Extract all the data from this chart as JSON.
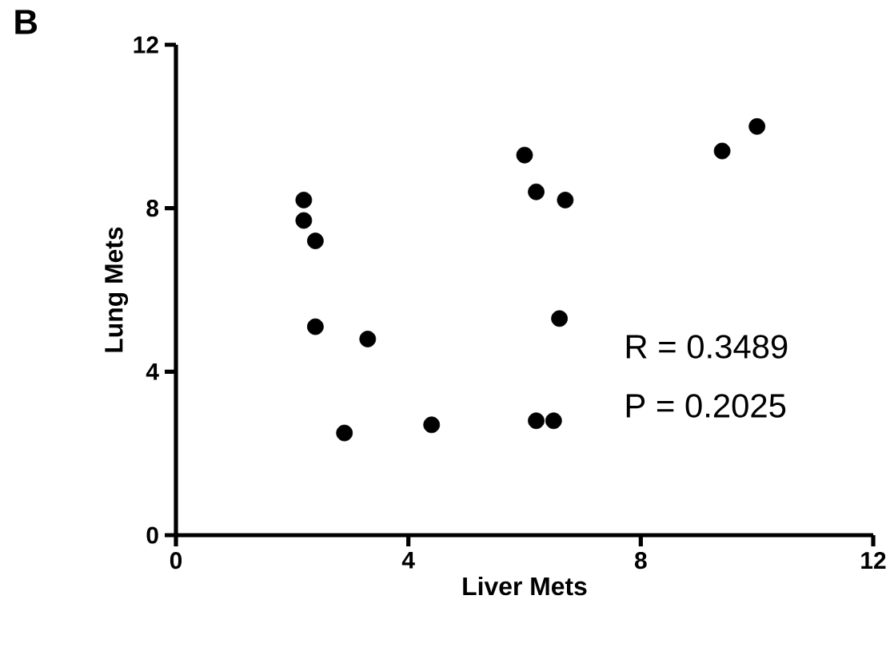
{
  "chart_data": {
    "type": "scatter",
    "xlabel": "Liver Mets",
    "ylabel": "Lung Mets",
    "annotations": [
      "B",
      "R = 0.3489",
      "P = 0.2025"
    ],
    "xlim": [
      0,
      12
    ],
    "ylim": [
      0,
      12
    ],
    "xticks": [
      0,
      4,
      8,
      12
    ],
    "yticks": [
      0,
      4,
      8,
      12
    ],
    "marker": "circle",
    "series": [
      {
        "color": "#000000",
        "x": [
          2.2,
          2.2,
          2.4,
          2.4,
          3.3,
          2.9,
          4.4,
          6.0,
          6.2,
          6.7,
          6.6,
          6.2,
          6.5,
          9.4,
          10.0
        ],
        "values": [
          8.2,
          7.7,
          7.2,
          5.1,
          4.8,
          2.5,
          2.7,
          9.3,
          8.4,
          8.2,
          5.3,
          2.8,
          2.8,
          9.4,
          10.0
        ]
      }
    ]
  }
}
